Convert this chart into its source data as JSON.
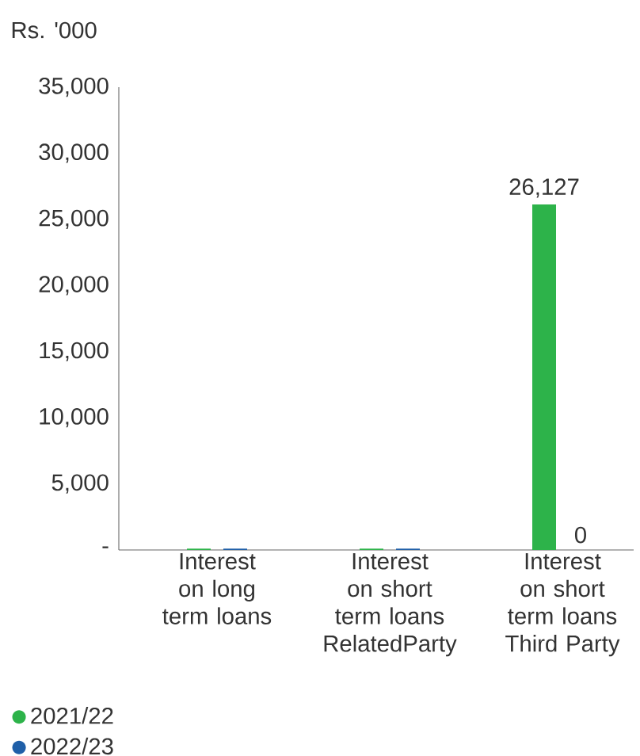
{
  "chart_data": {
    "type": "bar",
    "ylabel": "Rs. '000",
    "categories": [
      "Interest on long term loans",
      "Interest on short term loans RelatedParty",
      "Interest on short term loans Third Party"
    ],
    "series": [
      {
        "name": "2021/22",
        "color": "#2db34a",
        "values": [
          100,
          100,
          26127
        ],
        "value_labels": [
          null,
          null,
          "26,127"
        ]
      },
      {
        "name": "2022/23",
        "color": "#1f5fa8",
        "values": [
          100,
          100,
          0
        ],
        "value_labels": [
          null,
          null,
          "0"
        ]
      }
    ],
    "ylim": [
      0,
      35000
    ],
    "yticks": [
      {
        "value": 0,
        "label": "-"
      },
      {
        "value": 5000,
        "label": "5,000"
      },
      {
        "value": 10000,
        "label": "10,000"
      },
      {
        "value": 15000,
        "label": "15,000"
      },
      {
        "value": 20000,
        "label": "20,000"
      },
      {
        "value": 25000,
        "label": "25,000"
      },
      {
        "value": 30000,
        "label": "30,000"
      },
      {
        "value": 35000,
        "label": "35,000"
      }
    ],
    "grid": false,
    "legend": "bottom left"
  }
}
